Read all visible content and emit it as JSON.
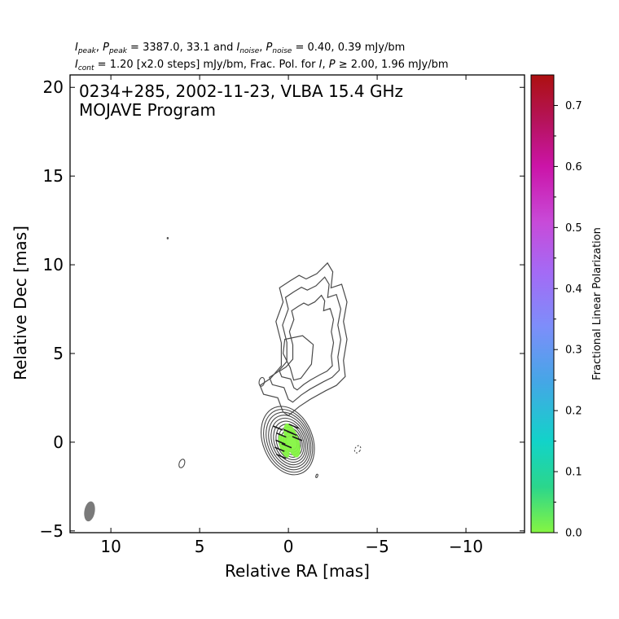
{
  "chart_data": {
    "type": "contour",
    "title_line1": "0234+285, 2002-11-23, VLBA 15.4 GHz",
    "title_line2": "MOJAVE Program",
    "header_line1": {
      "i": "I",
      "i_sub": "peak",
      "p": "P",
      "p_sub": "peak",
      "mid": " = 3387.0, 33.1 and ",
      "i2": "I",
      "i2_sub": "noise",
      "p2": "P",
      "p2_sub": "noise",
      "end": " = 0.40, 0.39 mJy/bm"
    },
    "header_line2": {
      "i": "I",
      "i_sub": "cont",
      "mid": " = 1.20 [x2.0 steps] mJy/bm, Frac. Pol. for ",
      "i2": "I",
      "p": "P",
      "end": " ≥ 2.00, 1.96 mJy/bm"
    },
    "xlabel": "Relative RA [mas]",
    "ylabel": "Relative Dec [mas]",
    "xlim": [
      12.3,
      -13.3
    ],
    "ylim": [
      -5.1,
      20.7
    ],
    "xticks": [
      10,
      5,
      0,
      -5,
      -10
    ],
    "yticks": [
      -5,
      0,
      5,
      10,
      15,
      20
    ],
    "colorbar": {
      "label": "Fractional Linear Polarization",
      "range": [
        0.0,
        0.75
      ],
      "labeled_ticks": [
        0.0,
        0.1,
        0.2,
        0.3,
        0.4,
        0.5,
        0.6,
        0.7
      ],
      "minor_ticks": [
        0.05,
        0.15,
        0.25,
        0.35,
        0.45,
        0.55,
        0.65
      ],
      "colors": [
        "#85f542",
        "#2bd68c",
        "#12d3c9",
        "#45a6e6",
        "#7d8efa",
        "#a46af5",
        "#c84ad8",
        "#cb14a8",
        "#b5135a",
        "#ad1010"
      ]
    },
    "beam": {
      "x": 11.2,
      "y": -3.9,
      "major_mas": 1.2,
      "minor_mas": 0.95,
      "pa_deg": -10
    },
    "core": {
      "x": 0.0,
      "y": 0.0
    },
    "contour_levels_mjy": [
      1.2,
      2.4,
      4.8,
      9.6,
      19.2,
      38.4,
      76.8,
      153.6,
      307.2,
      614.4,
      1228.8,
      2457.6
    ],
    "contour_color": "#4a4a4a",
    "polarization_fill_color": "#85f542"
  }
}
